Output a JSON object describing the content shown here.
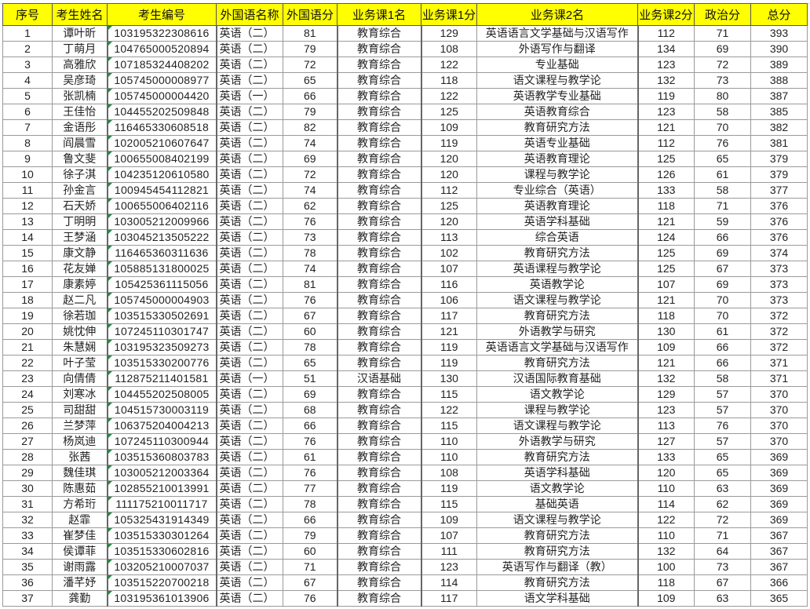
{
  "headers": [
    "序号",
    "考生姓名",
    "考生编号",
    "外国语名称",
    "外国语分",
    "业务课1名",
    "业务课1分",
    "业务课2名",
    "业务课2分",
    "政治分",
    "总分"
  ],
  "colors": {
    "header_bg": "#ffff00",
    "grid": "#9a9a9a",
    "text_marker": "#1e8e3e"
  },
  "rows": [
    [
      "1",
      "谭叶昕",
      "103195322308616",
      "英语（二）",
      "81",
      "教育综合",
      "129",
      "英语语言文学基础与汉语写作",
      "112",
      "71",
      "393"
    ],
    [
      "2",
      "丁萌月",
      "104765000520894",
      "英语（二）",
      "79",
      "教育综合",
      "108",
      "外语写作与翻译",
      "134",
      "69",
      "390"
    ],
    [
      "3",
      "高雅欣",
      "107185324408202",
      "英语（二）",
      "72",
      "教育综合",
      "122",
      "专业基础",
      "123",
      "72",
      "389"
    ],
    [
      "4",
      "吴彦琦",
      "105745000008977",
      "英语（二）",
      "65",
      "教育综合",
      "118",
      "语文课程与教学论",
      "132",
      "73",
      "388"
    ],
    [
      "5",
      "张凯楠",
      "105745000004420",
      "英语（一）",
      "66",
      "教育综合",
      "122",
      "英语教学专业基础",
      "119",
      "80",
      "387"
    ],
    [
      "6",
      "王佳怡",
      "104455202509848",
      "英语（二）",
      "79",
      "教育综合",
      "125",
      "英语教育综合",
      "123",
      "58",
      "385"
    ],
    [
      "7",
      "金语彤",
      "116465330608518",
      "英语（二）",
      "82",
      "教育综合",
      "109",
      "教育研究方法",
      "121",
      "70",
      "382"
    ],
    [
      "8",
      "阎晨雪",
      "102005210607647",
      "英语（二）",
      "74",
      "教育综合",
      "119",
      "英语专业基础",
      "112",
      "76",
      "381"
    ],
    [
      "9",
      "鲁文斐",
      "100655008402199",
      "英语（二）",
      "69",
      "教育综合",
      "120",
      "英语教育理论",
      "125",
      "65",
      "379"
    ],
    [
      "10",
      "徐子淇",
      "104235120610580",
      "英语（二）",
      "72",
      "教育综合",
      "120",
      "课程与教学论",
      "126",
      "61",
      "379"
    ],
    [
      "11",
      "孙金言",
      "100945454112821",
      "英语（二）",
      "74",
      "教育综合",
      "112",
      "专业综合（英语）",
      "133",
      "58",
      "377"
    ],
    [
      "12",
      "石天娇",
      "100655006402116",
      "英语（二）",
      "62",
      "教育综合",
      "125",
      "英语教育理论",
      "118",
      "71",
      "376"
    ],
    [
      "13",
      "丁明明",
      "103005212009966",
      "英语（二）",
      "76",
      "教育综合",
      "120",
      "英语学科基础",
      "121",
      "59",
      "376"
    ],
    [
      "14",
      "王梦涵",
      "103045213505222",
      "英语（二）",
      "73",
      "教育综合",
      "113",
      "综合英语",
      "124",
      "66",
      "376"
    ],
    [
      "15",
      "康文静",
      "116465360311636",
      "英语（二）",
      "78",
      "教育综合",
      "102",
      "教育研究方法",
      "125",
      "69",
      "374"
    ],
    [
      "16",
      "花友婵",
      "105885131800025",
      "英语（二）",
      "74",
      "教育综合",
      "107",
      "英语课程与教学论",
      "125",
      "67",
      "373"
    ],
    [
      "17",
      "康素婷",
      "105425361115056",
      "英语（二）",
      "81",
      "教育综合",
      "116",
      "英语教学论",
      "107",
      "69",
      "373"
    ],
    [
      "18",
      "赵二凡",
      "105745000004903",
      "英语（二）",
      "76",
      "教育综合",
      "106",
      "语文课程与教学论",
      "121",
      "70",
      "373"
    ],
    [
      "19",
      "徐若珈",
      "103515330502691",
      "英语（二）",
      "67",
      "教育综合",
      "117",
      "教育研究方法",
      "118",
      "70",
      "372"
    ],
    [
      "20",
      "姚忱伸",
      "107245110301747",
      "英语（二）",
      "60",
      "教育综合",
      "121",
      "外语教学与研究",
      "130",
      "61",
      "372"
    ],
    [
      "21",
      "朱慧娴",
      "103195323509273",
      "英语（二）",
      "78",
      "教育综合",
      "119",
      "英语语言文学基础与汉语写作",
      "109",
      "66",
      "372"
    ],
    [
      "22",
      "叶子莹",
      "103515330200776",
      "英语（二）",
      "65",
      "教育综合",
      "119",
      "教育研究方法",
      "121",
      "66",
      "371"
    ],
    [
      "23",
      "向倩倩",
      "112875211401581",
      "英语（一）",
      "51",
      "汉语基础",
      "130",
      "汉语国际教育基础",
      "132",
      "58",
      "371"
    ],
    [
      "24",
      "刘寒冰",
      "104455202508005",
      "英语（二）",
      "69",
      "教育综合",
      "115",
      "语文教学论",
      "129",
      "57",
      "370"
    ],
    [
      "25",
      "司甜甜",
      "104515730003119",
      "英语（二）",
      "68",
      "教育综合",
      "122",
      "课程与教学论",
      "123",
      "57",
      "370"
    ],
    [
      "26",
      "兰梦萍",
      "106375204004213",
      "英语（二）",
      "66",
      "教育综合",
      "115",
      "语文课程与教学论",
      "113",
      "76",
      "370"
    ],
    [
      "27",
      "杨岚迪",
      "107245110300944",
      "英语（二）",
      "76",
      "教育综合",
      "110",
      "外语教学与研究",
      "127",
      "57",
      "370"
    ],
    [
      "28",
      "张茜",
      "103515360803783",
      "英语（二）",
      "61",
      "教育综合",
      "110",
      "教育研究方法",
      "133",
      "65",
      "369"
    ],
    [
      "29",
      "魏佳琪",
      "103005212003364",
      "英语（二）",
      "76",
      "教育综合",
      "108",
      "英语学科基础",
      "120",
      "65",
      "369"
    ],
    [
      "30",
      "陈惠茹",
      "102855210013991",
      "英语（二）",
      "77",
      "教育综合",
      "119",
      "语文教学论",
      "110",
      "63",
      "369"
    ],
    [
      "31",
      "方希珩",
      "111175210011717",
      "英语（二）",
      "78",
      "教育综合",
      "115",
      "基础英语",
      "114",
      "62",
      "369"
    ],
    [
      "32",
      "赵霏",
      "105325431914349",
      "英语（二）",
      "66",
      "教育综合",
      "109",
      "语文课程与教学论",
      "122",
      "72",
      "369"
    ],
    [
      "33",
      "崔梦佳",
      "103515330301264",
      "英语（二）",
      "79",
      "教育综合",
      "107",
      "教育研究方法",
      "110",
      "71",
      "367"
    ],
    [
      "34",
      "侯谭菲",
      "103515330602816",
      "英语（二）",
      "60",
      "教育综合",
      "111",
      "教育研究方法",
      "132",
      "64",
      "367"
    ],
    [
      "35",
      "谢雨露",
      "103205210007037",
      "英语（二）",
      "71",
      "教育综合",
      "123",
      "英语写作与翻译（教）",
      "100",
      "73",
      "367"
    ],
    [
      "36",
      "潘芊妤",
      "103515220700218",
      "英语（二）",
      "67",
      "教育综合",
      "114",
      "教育研究方法",
      "118",
      "67",
      "366"
    ],
    [
      "37",
      "龚勤",
      "103195361013906",
      "英语（二）",
      "76",
      "教育综合",
      "117",
      "语文学科基础",
      "109",
      "63",
      "365"
    ]
  ]
}
